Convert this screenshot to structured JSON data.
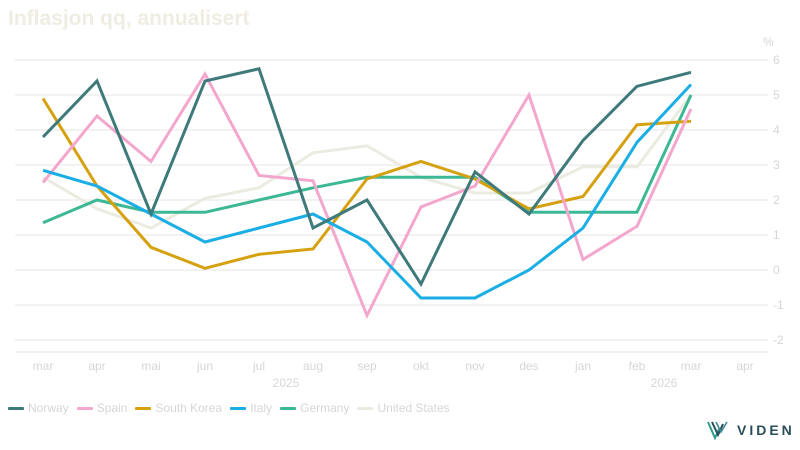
{
  "chart_data": {
    "type": "line",
    "title": "Inflasjon qq, annualisert",
    "unit_label": "%",
    "x_labels": [
      "mar",
      "apr",
      "mai",
      "jun",
      "jul",
      "aug",
      "sep",
      "okt",
      "nov",
      "des",
      "jan",
      "feb",
      "mar",
      "apr"
    ],
    "year_labels": [
      {
        "label": "2025",
        "at_index": 4.5
      },
      {
        "label": "2026",
        "at_index": 11.5
      }
    ],
    "ylim": [
      -2.2,
      6.3
    ],
    "yticks": [
      -2,
      -1,
      0,
      1,
      2,
      3,
      4,
      5,
      6
    ],
    "y_axis_side": "right",
    "grid": true,
    "legend_position": "bottom-left",
    "series": [
      {
        "name": "Norway",
        "color": "#3f7a7b",
        "values": [
          3.8,
          5.4,
          1.6,
          5.4,
          5.75,
          1.2,
          2.0,
          -0.4,
          2.8,
          1.6,
          3.7,
          5.25,
          5.65,
          null
        ]
      },
      {
        "name": "Spain",
        "color": "#f4a7cd",
        "values": [
          2.5,
          4.4,
          3.1,
          5.6,
          2.7,
          2.55,
          -1.3,
          1.8,
          2.4,
          5.0,
          0.3,
          1.25,
          4.6,
          null
        ]
      },
      {
        "name": "South Korea",
        "color": "#d6a10f",
        "values": [
          4.9,
          2.4,
          0.65,
          0.05,
          0.45,
          0.6,
          2.6,
          3.1,
          2.6,
          1.75,
          2.1,
          4.15,
          4.25,
          null
        ]
      },
      {
        "name": "Italy",
        "color": "#1aaee5",
        "values": [
          2.85,
          2.4,
          1.6,
          0.8,
          1.2,
          1.6,
          0.8,
          -0.8,
          -0.8,
          0.0,
          1.2,
          3.65,
          5.3,
          null
        ]
      },
      {
        "name": "Germany",
        "color": "#3db895",
        "values": [
          1.35,
          2.0,
          1.65,
          1.65,
          2.0,
          2.35,
          2.65,
          2.65,
          2.65,
          1.65,
          1.65,
          1.65,
          5.0,
          null
        ]
      },
      {
        "name": "United States",
        "color": "#ecebe2",
        "values": [
          2.65,
          1.75,
          1.2,
          2.05,
          2.35,
          3.35,
          3.55,
          2.65,
          2.2,
          2.2,
          2.95,
          2.95,
          5.0,
          null
        ]
      }
    ]
  },
  "logo": {
    "text": "VIDEN"
  }
}
